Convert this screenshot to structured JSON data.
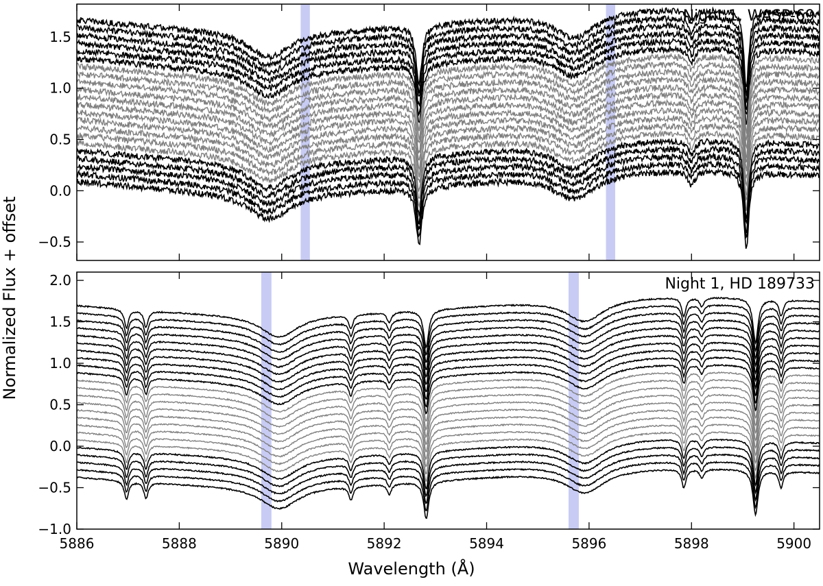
{
  "chart_data": {
    "type": "line",
    "xlabel": "Wavelength (Å)",
    "ylabel": "Normalized Flux + offset",
    "xlim": [
      5886,
      5900.5
    ],
    "x_ticks": [
      5886,
      5888,
      5890,
      5892,
      5894,
      5896,
      5898,
      5900
    ],
    "x_tick_labels": [
      "5886",
      "5888",
      "5890",
      "5892",
      "5894",
      "5896",
      "5898",
      "5900"
    ],
    "series_colors": {
      "out_of_transit": "#000000",
      "in_transit": "#808080",
      "highlight_band": "#c8ccf4"
    },
    "panels": [
      {
        "label": "Night 1, WASP-69",
        "ylim": [
          -0.68,
          1.82
        ],
        "y_ticks": [
          -0.5,
          0.0,
          0.5,
          1.0,
          1.5
        ],
        "y_tick_labels": [
          "−0.5",
          "0.0",
          "0.5",
          "1.0",
          "1.5"
        ],
        "spectra_count": 22,
        "offset_step": 0.075,
        "base_offset": 0.05,
        "continuum_top": 1.62,
        "black_spectra_indices": [
          0,
          1,
          2,
          3,
          4,
          5,
          17,
          18,
          19,
          20,
          21
        ],
        "highlight_bands": [
          [
            5890.37,
            5890.55
          ],
          [
            5896.33,
            5896.51
          ]
        ],
        "absorption_lines": [
          {
            "center": 5889.75,
            "depth": 0.52,
            "width": 0.5
          },
          {
            "center": 5895.72,
            "depth": 0.5,
            "width": 0.5
          },
          {
            "center": 5892.68,
            "depth": 0.62,
            "width": 0.07
          },
          {
            "center": 5899.07,
            "depth": 0.82,
            "width": 0.06
          },
          {
            "center": 5898.0,
            "depth": 0.15,
            "width": 0.08
          }
        ],
        "noise": 0.03
      },
      {
        "label": "Night 1, HD 189733",
        "ylim": [
          -1.0,
          2.1
        ],
        "y_ticks": [
          -1.0,
          -0.5,
          0.0,
          0.5,
          1.0,
          1.5,
          2.0
        ],
        "y_tick_labels": [
          "−1.0",
          "−0.5",
          "0.0",
          "0.5",
          "1.0",
          "1.5",
          "2.0"
        ],
        "spectra_count": 24,
        "offset_step": 0.09,
        "base_offset": -0.15,
        "continuum_top": 1.85,
        "black_spectra_indices": [
          0,
          1,
          2,
          3,
          4,
          5,
          6,
          7,
          8,
          9,
          19,
          20,
          21,
          22,
          23
        ],
        "highlight_bands": [
          [
            5889.6,
            5889.8
          ],
          [
            5895.6,
            5895.8
          ]
        ],
        "absorption_lines": [
          {
            "center": 5889.95,
            "depth": 0.55,
            "width": 0.45
          },
          {
            "center": 5895.92,
            "depth": 0.55,
            "width": 0.45
          },
          {
            "center": 5886.97,
            "depth": 0.25,
            "width": 0.05
          },
          {
            "center": 5887.35,
            "depth": 0.22,
            "width": 0.05
          },
          {
            "center": 5891.35,
            "depth": 0.18,
            "width": 0.05
          },
          {
            "center": 5892.1,
            "depth": 0.14,
            "width": 0.05
          },
          {
            "center": 5892.82,
            "depth": 0.5,
            "width": 0.06
          },
          {
            "center": 5897.85,
            "depth": 0.25,
            "width": 0.05
          },
          {
            "center": 5898.2,
            "depth": 0.12,
            "width": 0.05
          },
          {
            "center": 5899.25,
            "depth": 0.6,
            "width": 0.06
          },
          {
            "center": 5899.75,
            "depth": 0.22,
            "width": 0.05
          }
        ],
        "noise": 0.008
      }
    ]
  }
}
